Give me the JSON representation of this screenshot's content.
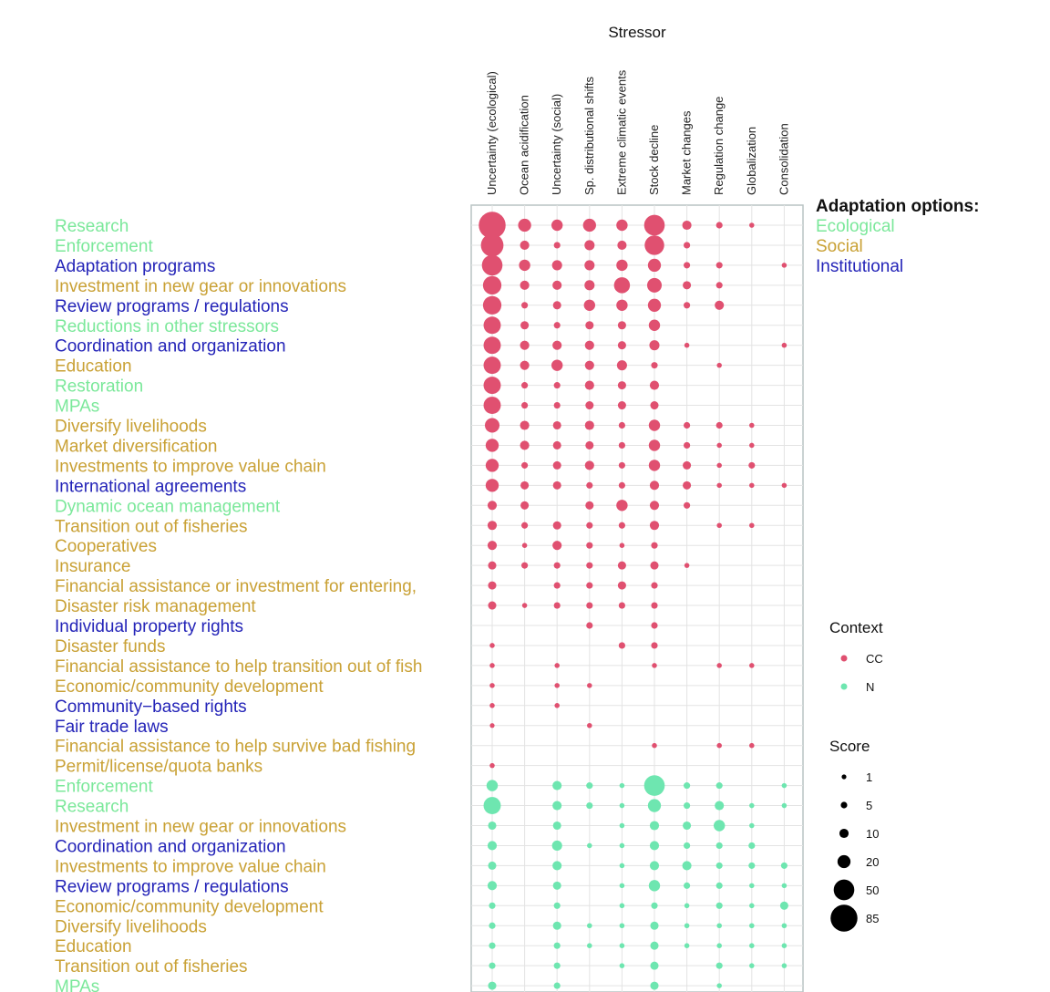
{
  "chart_data": {
    "type": "scatter",
    "title": "Stressor",
    "stressors": [
      "Uncertainty (ecological)",
      "Ocean acidification",
      "Uncertainty (social)",
      "Sp. distributional shifts",
      "Extreme climatic events",
      "Stock decline",
      "Market changes",
      "Regulation change",
      "Globalization",
      "Consolidation"
    ],
    "colors": {
      "CC": "#e05070",
      "N": "#6ee6b0",
      "Ecological": "#7be89a",
      "Social": "#c9a135",
      "Institutional": "#2424b8",
      "grid": "#e3e3e3",
      "frame": "#b8c4c4"
    },
    "adaptation_legend": {
      "title": "Adaptation options:",
      "items": [
        {
          "key": "Ecological",
          "label": "Ecological"
        },
        {
          "key": "Social",
          "label": "Social"
        },
        {
          "key": "Institutional",
          "label": "Institutional"
        }
      ]
    },
    "context_legend": {
      "title": "Context",
      "items": [
        {
          "key": "CC",
          "label": "CC"
        },
        {
          "key": "N",
          "label": "N"
        }
      ]
    },
    "score_legend": {
      "title": "Score",
      "values": [
        1,
        5,
        10,
        20,
        50,
        85
      ]
    },
    "rows": [
      {
        "label": "Research",
        "type": "Ecological",
        "context": "CC",
        "scores": [
          85,
          20,
          15,
          20,
          15,
          50,
          10,
          5,
          3,
          0
        ]
      },
      {
        "label": "Enforcement",
        "type": "Ecological",
        "context": "CC",
        "scores": [
          60,
          10,
          5,
          12,
          10,
          45,
          5,
          0,
          0,
          0
        ]
      },
      {
        "label": "Adaptation programs",
        "type": "Institutional",
        "context": "CC",
        "scores": [
          50,
          15,
          12,
          12,
          15,
          20,
          5,
          5,
          0,
          3
        ]
      },
      {
        "label": "Investment in new gear or innovations",
        "type": "Social",
        "context": "CC",
        "scores": [
          40,
          10,
          10,
          12,
          30,
          25,
          8,
          5,
          0,
          0
        ]
      },
      {
        "label": "Review programs / regulations",
        "type": "Institutional",
        "context": "CC",
        "scores": [
          40,
          5,
          8,
          15,
          15,
          20,
          5,
          10,
          0,
          0
        ]
      },
      {
        "label": "Reductions in other stressors",
        "type": "Ecological",
        "context": "CC",
        "scores": [
          35,
          8,
          5,
          8,
          8,
          15,
          0,
          0,
          0,
          0
        ]
      },
      {
        "label": "Coordination and organization",
        "type": "Institutional",
        "context": "CC",
        "scores": [
          35,
          10,
          10,
          10,
          8,
          12,
          3,
          0,
          0,
          3
        ]
      },
      {
        "label": "Education",
        "type": "Social",
        "context": "CC",
        "scores": [
          35,
          10,
          15,
          10,
          12,
          5,
          0,
          3,
          0,
          0
        ]
      },
      {
        "label": "Restoration",
        "type": "Ecological",
        "context": "CC",
        "scores": [
          35,
          5,
          5,
          10,
          8,
          10,
          0,
          0,
          0,
          0
        ]
      },
      {
        "label": "MPAs",
        "type": "Ecological",
        "context": "CC",
        "scores": [
          35,
          5,
          5,
          8,
          8,
          8,
          0,
          0,
          0,
          0
        ]
      },
      {
        "label": "Diversify livelihoods",
        "type": "Social",
        "context": "CC",
        "scores": [
          25,
          10,
          8,
          10,
          5,
          15,
          5,
          5,
          3,
          0
        ]
      },
      {
        "label": "Market diversification",
        "type": "Social",
        "context": "CC",
        "scores": [
          20,
          10,
          8,
          8,
          5,
          15,
          5,
          3,
          3,
          0
        ]
      },
      {
        "label": "Investments to improve value chain",
        "type": "Social",
        "context": "CC",
        "scores": [
          20,
          5,
          8,
          10,
          5,
          15,
          8,
          3,
          5,
          0
        ]
      },
      {
        "label": "International agreements",
        "type": "Institutional",
        "context": "CC",
        "scores": [
          20,
          8,
          8,
          5,
          5,
          10,
          8,
          3,
          3,
          3
        ]
      },
      {
        "label": "Dynamic ocean management",
        "type": "Ecological",
        "context": "CC",
        "scores": [
          10,
          8,
          0,
          8,
          15,
          10,
          5,
          0,
          0,
          0
        ]
      },
      {
        "label": "Transition out of fisheries",
        "type": "Social",
        "context": "CC",
        "scores": [
          10,
          5,
          8,
          5,
          5,
          10,
          0,
          3,
          3,
          0
        ]
      },
      {
        "label": "Cooperatives",
        "type": "Social",
        "context": "CC",
        "scores": [
          10,
          3,
          10,
          5,
          3,
          5,
          0,
          0,
          0,
          0
        ]
      },
      {
        "label": "Insurance",
        "type": "Social",
        "context": "CC",
        "scores": [
          8,
          5,
          5,
          5,
          8,
          8,
          3,
          0,
          0,
          0
        ]
      },
      {
        "label": "Financial assistance or investment for entering,",
        "type": "Social",
        "context": "CC",
        "scores": [
          8,
          0,
          5,
          5,
          8,
          5,
          0,
          0,
          0,
          0
        ]
      },
      {
        "label": "Disaster risk management",
        "type": "Social",
        "context": "CC",
        "scores": [
          8,
          3,
          5,
          5,
          5,
          5,
          0,
          0,
          0,
          0
        ]
      },
      {
        "label": "Individual property rights",
        "type": "Institutional",
        "context": "CC",
        "scores": [
          0,
          0,
          0,
          5,
          0,
          5,
          0,
          0,
          0,
          0
        ]
      },
      {
        "label": "Disaster funds",
        "type": "Social",
        "context": "CC",
        "scores": [
          3,
          0,
          0,
          0,
          5,
          5,
          0,
          0,
          0,
          0
        ]
      },
      {
        "label": "Financial assistance to help transition out of fish",
        "type": "Social",
        "context": "CC",
        "scores": [
          3,
          0,
          3,
          0,
          0,
          3,
          0,
          3,
          3,
          0
        ]
      },
      {
        "label": "Economic/community development",
        "type": "Social",
        "context": "CC",
        "scores": [
          3,
          0,
          3,
          3,
          0,
          0,
          0,
          0,
          0,
          0
        ]
      },
      {
        "label": "Community−based rights",
        "type": "Institutional",
        "context": "CC",
        "scores": [
          3,
          0,
          3,
          0,
          0,
          0,
          0,
          0,
          0,
          0
        ]
      },
      {
        "label": "Fair trade laws",
        "type": "Institutional",
        "context": "CC",
        "scores": [
          2,
          0,
          0,
          3,
          0,
          0,
          0,
          0,
          0,
          0
        ]
      },
      {
        "label": "Financial assistance to help survive bad fishing",
        "type": "Social",
        "context": "CC",
        "scores": [
          0,
          0,
          0,
          0,
          0,
          3,
          0,
          3,
          3,
          0
        ]
      },
      {
        "label": "Permit/license/quota banks",
        "type": "Social",
        "context": "CC",
        "scores": [
          3,
          0,
          0,
          0,
          0,
          0,
          0,
          0,
          0,
          0
        ]
      },
      {
        "label": "Enforcement",
        "type": "Ecological",
        "context": "N",
        "scores": [
          15,
          0,
          10,
          5,
          3,
          50,
          5,
          5,
          0,
          3
        ]
      },
      {
        "label": "Research",
        "type": "Ecological",
        "context": "N",
        "scores": [
          35,
          0,
          10,
          5,
          3,
          20,
          5,
          10,
          3,
          3
        ]
      },
      {
        "label": "Investment in new gear or innovations",
        "type": "Social",
        "context": "N",
        "scores": [
          8,
          0,
          8,
          0,
          3,
          10,
          8,
          15,
          3,
          0
        ]
      },
      {
        "label": "Coordination and organization",
        "type": "Institutional",
        "context": "N",
        "scores": [
          10,
          0,
          12,
          3,
          3,
          10,
          5,
          5,
          5,
          0
        ]
      },
      {
        "label": "Investments to improve value chain",
        "type": "Social",
        "context": "N",
        "scores": [
          8,
          0,
          10,
          0,
          3,
          10,
          10,
          5,
          5,
          5
        ]
      },
      {
        "label": "Review programs / regulations",
        "type": "Institutional",
        "context": "N",
        "scores": [
          10,
          0,
          8,
          0,
          3,
          15,
          5,
          5,
          3,
          3
        ]
      },
      {
        "label": "Economic/community development",
        "type": "Social",
        "context": "N",
        "scores": [
          5,
          0,
          5,
          0,
          3,
          5,
          3,
          5,
          3,
          8
        ]
      },
      {
        "label": "Diversify livelihoods",
        "type": "Social",
        "context": "N",
        "scores": [
          5,
          0,
          8,
          3,
          3,
          8,
          3,
          3,
          3,
          3
        ]
      },
      {
        "label": "Education",
        "type": "Social",
        "context": "N",
        "scores": [
          5,
          0,
          5,
          3,
          3,
          8,
          3,
          3,
          3,
          3
        ]
      },
      {
        "label": "Transition out of fisheries",
        "type": "Social",
        "context": "N",
        "scores": [
          5,
          0,
          5,
          0,
          3,
          8,
          0,
          5,
          3,
          3
        ]
      },
      {
        "label": "MPAs",
        "type": "Ecological",
        "context": "N",
        "scores": [
          8,
          0,
          5,
          0,
          0,
          8,
          0,
          3,
          0,
          0
        ]
      }
    ]
  }
}
